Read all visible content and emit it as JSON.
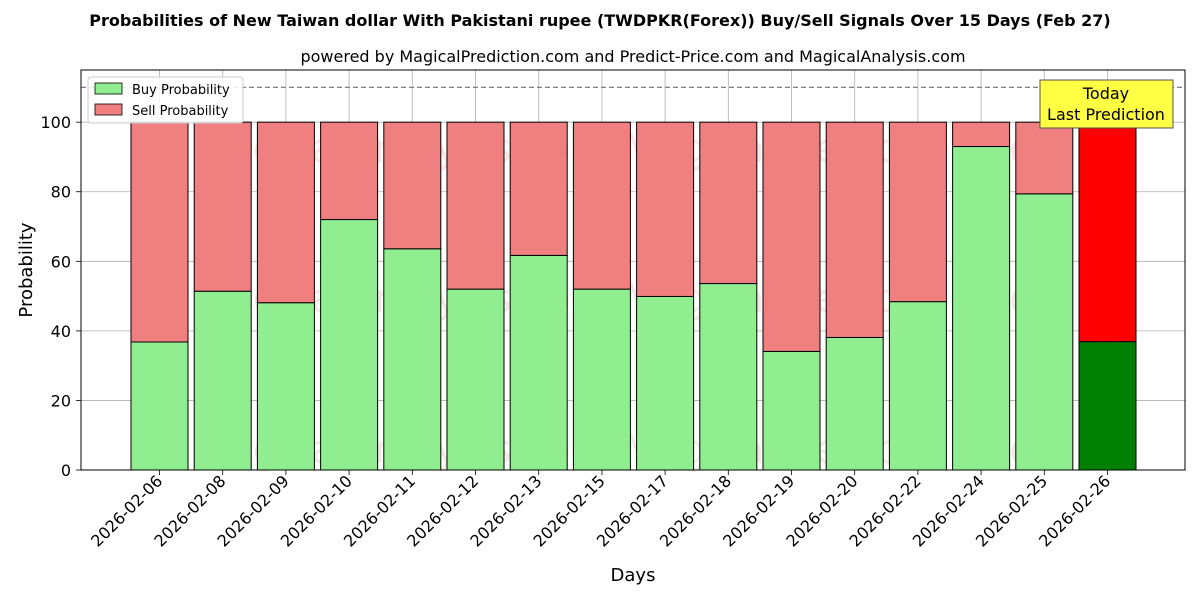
{
  "chart_data": {
    "type": "bar",
    "stacked": true,
    "title": "Probabilities of New Taiwan dollar With Pakistani rupee (TWDPKR(Forex)) Buy/Sell Signals Over 15 Days (Feb 27)",
    "subtitle": "powered by MagicalPrediction.com and Predict-Price.com and MagicalAnalysis.com",
    "xlabel": "Days",
    "ylabel": "Probability",
    "ylim": [
      0,
      115
    ],
    "yticks": [
      0,
      20,
      40,
      60,
      80,
      100
    ],
    "reference_line": 110,
    "grid": true,
    "legend_position": "top-left",
    "categories": [
      "2026-02-06",
      "2026-02-08",
      "2026-02-09",
      "2026-02-10",
      "2026-02-11",
      "2026-02-12",
      "2026-02-13",
      "2026-02-15",
      "2026-02-17",
      "2026-02-18",
      "2026-02-19",
      "2026-02-20",
      "2026-02-22",
      "2026-02-24",
      "2026-02-25",
      "2026-02-26"
    ],
    "series": [
      {
        "name": "Buy Probability",
        "color": "#90ee90",
        "highlight_color": "#008000",
        "values": [
          36.8,
          51.4,
          48.1,
          72.0,
          63.6,
          52.0,
          61.7,
          52.0,
          49.9,
          53.6,
          34.1,
          38.1,
          48.4,
          93.0,
          79.4,
          36.9
        ]
      },
      {
        "name": "Sell Probability",
        "color": "#f08080",
        "highlight_color": "#ff0000",
        "values": [
          63.2,
          48.6,
          51.9,
          28.0,
          36.4,
          48.0,
          38.3,
          48.0,
          50.1,
          46.4,
          65.9,
          61.9,
          51.6,
          7.0,
          20.6,
          63.1
        ]
      }
    ],
    "highlight_index": 15,
    "annotation": {
      "line1": "Today",
      "line2": "Last Prediction",
      "color": "#ffff44"
    },
    "watermark": "MagicalAnalysis.com     MagicalPrediction.com"
  }
}
